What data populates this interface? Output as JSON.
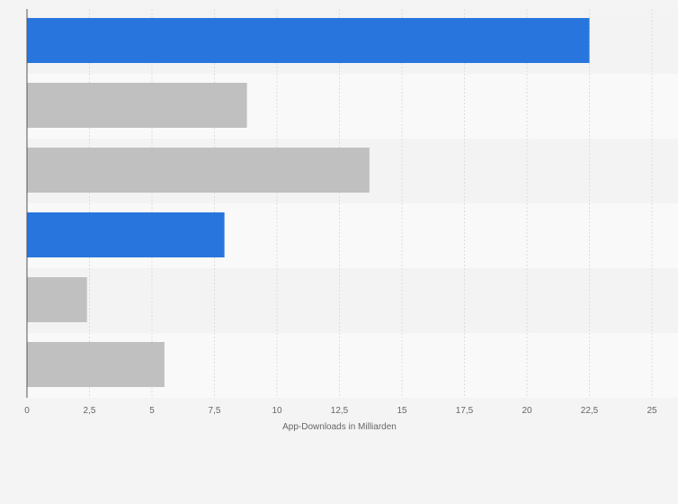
{
  "chart_data": {
    "type": "bar",
    "orientation": "horizontal",
    "categories": [
      "",
      "",
      "",
      "",
      "",
      ""
    ],
    "values": [
      22.5,
      8.8,
      13.7,
      7.9,
      2.4,
      5.5
    ],
    "bar_colors": [
      "#2876dd",
      "#c0c0c0",
      "#c0c0c0",
      "#2876dd",
      "#c0c0c0",
      "#c0c0c0"
    ],
    "xlim": [
      0,
      25
    ],
    "xticks": [
      0,
      2.5,
      5,
      7.5,
      10,
      12.5,
      15,
      17.5,
      20,
      22.5,
      25
    ],
    "xtick_labels": [
      "0",
      "2,5",
      "5",
      "7,5",
      "10",
      "12,5",
      "15",
      "17,5",
      "20",
      "22,5",
      "25"
    ],
    "xlabel": "App-Downloads in Milliarden",
    "ylabel": "",
    "title": "",
    "grid": true,
    "legend": "none",
    "colors": {
      "page_background": "#f4f4f4",
      "band_dark": "#f3f3f3",
      "band_light": "#f9f9f9",
      "grid": "#dddddd",
      "axis": "#555555",
      "text": "#666666"
    }
  }
}
